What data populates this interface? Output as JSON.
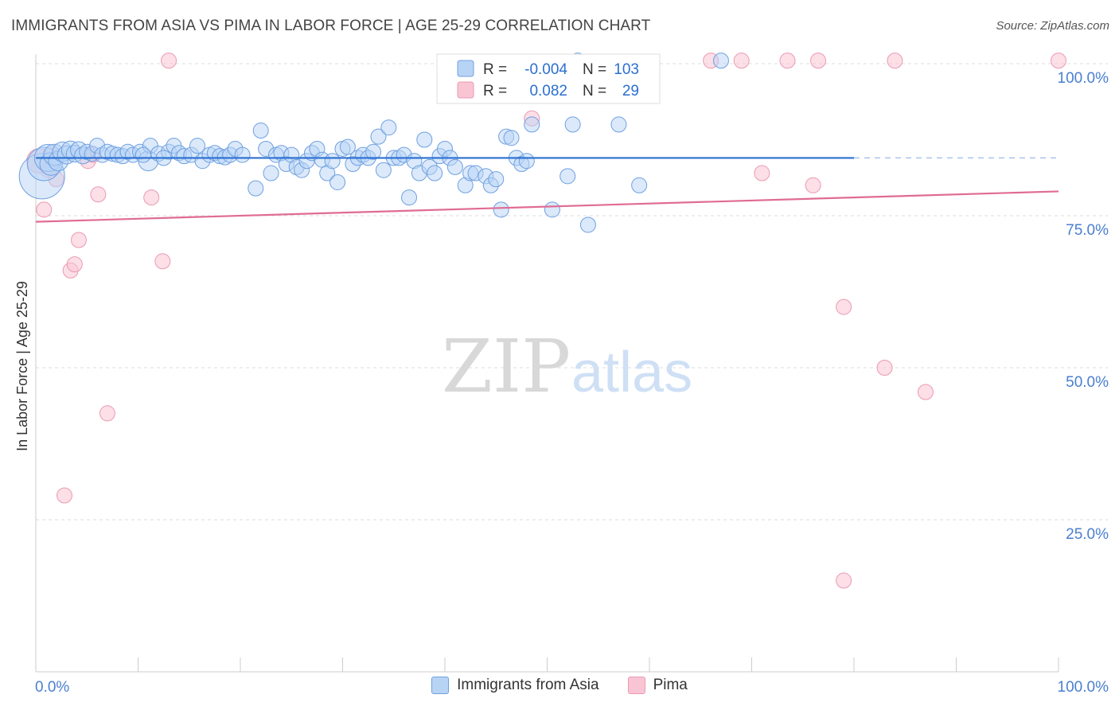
{
  "header": {
    "title": "IMMIGRANTS FROM ASIA VS PIMA IN LABOR FORCE | AGE 25-29 CORRELATION CHART",
    "source": "Source: ZipAtlas.com"
  },
  "watermark": {
    "part1": "ZIP",
    "part2": "atlas"
  },
  "legend": {
    "rows": [
      {
        "series": "Immigrants from Asia",
        "r_label": "R =",
        "r_value": "-0.004",
        "n_label": "N =",
        "n_value": "103"
      },
      {
        "series": "Pima",
        "r_label": "R =",
        "r_value": "0.082",
        "n_label": "N =",
        "n_value": "29"
      }
    ]
  },
  "colors": {
    "asia_fill": "#b8d4f5",
    "asia_stroke": "#6fa0e0",
    "asia_line": "#2a6fd1",
    "pima_fill": "#f9c5d4",
    "pima_stroke": "#ea9ab2",
    "pima_line": "#e06b95",
    "tick_label": "#4a7fd0",
    "grid": "#dddddd"
  },
  "chart_data": {
    "type": "scatter",
    "title": "IMMIGRANTS FROM ASIA VS PIMA IN LABOR FORCE | AGE 25-29 CORRELATION CHART",
    "xlabel": "",
    "ylabel": "In Labor Force | Age 25-29",
    "xlim": [
      0,
      100
    ],
    "ylim": [
      0,
      100
    ],
    "x_tick_labels": [
      "0.0%",
      "100.0%"
    ],
    "y_ticks": [
      25,
      50,
      75,
      100
    ],
    "y_tick_labels": [
      "25.0%",
      "50.0%",
      "75.0%",
      "100.0%"
    ],
    "series": [
      {
        "name": "Immigrants from Asia",
        "r": -0.004,
        "n": 103,
        "trend": {
          "x": [
            0,
            80
          ],
          "y": [
            84.5,
            84.5
          ],
          "dashed_extension_to": 100
        },
        "points": [
          [
            0.6,
            81.5,
            3
          ],
          [
            0.8,
            83.5,
            2.2
          ],
          [
            1.2,
            84.5,
            1.8
          ],
          [
            1.5,
            83.5,
            1.5
          ],
          [
            1.8,
            85.0,
            1.4
          ],
          [
            2.2,
            84.0,
            1.3
          ],
          [
            2.6,
            85.5,
            1.3
          ],
          [
            3.0,
            85.0,
            1.2
          ],
          [
            3.4,
            85.8,
            1.2
          ],
          [
            3.8,
            85.2,
            1.1
          ],
          [
            4.2,
            85.8,
            1.1
          ],
          [
            4.6,
            84.9,
            1.1
          ],
          [
            5.0,
            85.5,
            1.0
          ],
          [
            5.5,
            85.2,
            1.0
          ],
          [
            6.0,
            86.5,
            1.0
          ],
          [
            6.5,
            85.0,
            1.0
          ],
          [
            7.0,
            85.5,
            1.0
          ],
          [
            7.5,
            85.2,
            1.0
          ],
          [
            8.0,
            85.0,
            1.0
          ],
          [
            8.5,
            84.8,
            1.0
          ],
          [
            9.0,
            85.5,
            1.0
          ],
          [
            9.5,
            85.0,
            1.0
          ],
          [
            10.2,
            85.5,
            1.0
          ],
          [
            11.0,
            84.0,
            1.3
          ],
          [
            11.2,
            86.5,
            1.0
          ],
          [
            12.0,
            85.2,
            1.0
          ],
          [
            13.0,
            85.5,
            1.0
          ],
          [
            13.5,
            86.5,
            1.0
          ],
          [
            14.0,
            85.3,
            1.0
          ],
          [
            14.5,
            84.8,
            1.0
          ],
          [
            15.2,
            85.0,
            1.0
          ],
          [
            15.8,
            86.5,
            1.0
          ],
          [
            16.3,
            84.0,
            1.0
          ],
          [
            17.0,
            85.0,
            1.0
          ],
          [
            17.5,
            85.3,
            1.0
          ],
          [
            18.0,
            84.8,
            1.0
          ],
          [
            18.5,
            84.6,
            1.0
          ],
          [
            19.0,
            85.0,
            1.0
          ],
          [
            19.5,
            86.0,
            1.0
          ],
          [
            20.2,
            85.0,
            1.0
          ],
          [
            21.5,
            79.5,
            1.0
          ],
          [
            22.0,
            89.0,
            1.0
          ],
          [
            22.5,
            86.0,
            1.0
          ],
          [
            23.0,
            82.0,
            1.0
          ],
          [
            23.5,
            85.0,
            1.0
          ],
          [
            24.0,
            85.3,
            1.0
          ],
          [
            24.5,
            83.5,
            1.0
          ],
          [
            25.0,
            85.0,
            1.0
          ],
          [
            25.5,
            83.0,
            1.0
          ],
          [
            26.0,
            82.5,
            1.0
          ],
          [
            26.5,
            84.0,
            1.0
          ],
          [
            27.0,
            85.3,
            1.0
          ],
          [
            27.5,
            86.0,
            1.0
          ],
          [
            28.0,
            84.2,
            1.0
          ],
          [
            28.5,
            82.0,
            1.0
          ],
          [
            29.0,
            84.0,
            1.0
          ],
          [
            29.5,
            80.5,
            1.0
          ],
          [
            30.0,
            86.0,
            1.0
          ],
          [
            30.5,
            86.3,
            1.0
          ],
          [
            31.0,
            83.5,
            1.0
          ],
          [
            31.5,
            84.5,
            1.0
          ],
          [
            32.0,
            85.0,
            1.0
          ],
          [
            32.5,
            84.5,
            1.0
          ],
          [
            33.0,
            85.5,
            1.0
          ],
          [
            33.5,
            88.0,
            1.0
          ],
          [
            34.0,
            82.5,
            1.0
          ],
          [
            34.5,
            89.5,
            1.0
          ],
          [
            35.0,
            84.5,
            1.0
          ],
          [
            35.5,
            84.5,
            1.0
          ],
          [
            36.0,
            85.0,
            1.0
          ],
          [
            36.5,
            78.0,
            1.0
          ],
          [
            37.0,
            84.0,
            1.0
          ],
          [
            37.5,
            82.0,
            1.0
          ],
          [
            38.0,
            87.5,
            1.0
          ],
          [
            38.5,
            83.0,
            1.0
          ],
          [
            39.0,
            82.0,
            1.0
          ],
          [
            39.5,
            84.8,
            1.0
          ],
          [
            40.0,
            86.0,
            1.0
          ],
          [
            40.5,
            84.5,
            1.0
          ],
          [
            41.0,
            83.0,
            1.0
          ],
          [
            42.0,
            80.0,
            1.0
          ],
          [
            42.5,
            82.0,
            1.0
          ],
          [
            43.0,
            82.0,
            1.0
          ],
          [
            44.0,
            81.5,
            1.0
          ],
          [
            44.5,
            80.0,
            1.0
          ],
          [
            45.0,
            81.0,
            1.0
          ],
          [
            45.5,
            76.0,
            1.0
          ],
          [
            46.0,
            88.0,
            1.0
          ],
          [
            46.5,
            87.8,
            1.0
          ],
          [
            47.0,
            84.5,
            1.0
          ],
          [
            47.5,
            83.5,
            1.0
          ],
          [
            48.0,
            84.0,
            1.0
          ],
          [
            48.5,
            90.0,
            1.0
          ],
          [
            50.5,
            76.0,
            1.0
          ],
          [
            52.0,
            81.5,
            1.0
          ],
          [
            52.5,
            90.0,
            1.0
          ],
          [
            53.0,
            100.5,
            1.0
          ],
          [
            54.0,
            73.5,
            1.0
          ],
          [
            57.0,
            90.0,
            1.0
          ],
          [
            59.0,
            80.0,
            1.0
          ],
          [
            67.0,
            100.5,
            1.0
          ],
          [
            10.5,
            85.0,
            1.0
          ],
          [
            12.5,
            84.5,
            1.0
          ]
        ]
      },
      {
        "name": "Pima",
        "r": 0.082,
        "n": 29,
        "trend": {
          "x": [
            0,
            100
          ],
          "y": [
            74.0,
            79.0
          ]
        },
        "points": [
          [
            0.3,
            84.0,
            1.6
          ],
          [
            0.8,
            76.0,
            1.0
          ],
          [
            1.2,
            82.5,
            1.0
          ],
          [
            1.6,
            85.0,
            1.0
          ],
          [
            2.0,
            81.0,
            1.0
          ],
          [
            2.8,
            29.0,
            1.0
          ],
          [
            3.4,
            66.0,
            1.0
          ],
          [
            3.8,
            67.0,
            1.0
          ],
          [
            4.2,
            71.0,
            1.0
          ],
          [
            5.1,
            84.0,
            1.0
          ],
          [
            5.6,
            85.0,
            1.0
          ],
          [
            6.1,
            78.5,
            1.0
          ],
          [
            7.0,
            42.5,
            1.0
          ],
          [
            11.3,
            78.0,
            1.0
          ],
          [
            12.4,
            67.5,
            1.0
          ],
          [
            13.0,
            100.5,
            1.0
          ],
          [
            48.5,
            91.0,
            1.0
          ],
          [
            66.0,
            100.5,
            1.0
          ],
          [
            69.0,
            100.5,
            1.0
          ],
          [
            71.0,
            82.0,
            1.0
          ],
          [
            73.5,
            100.5,
            1.0
          ],
          [
            76.0,
            80.0,
            1.0
          ],
          [
            76.5,
            100.5,
            1.0
          ],
          [
            79.0,
            60.0,
            1.0
          ],
          [
            79.0,
            15.0,
            1.0
          ],
          [
            83.0,
            50.0,
            1.0
          ],
          [
            84.0,
            100.5,
            1.0
          ],
          [
            87.0,
            46.0,
            1.0
          ],
          [
            100.0,
            100.5,
            1.0
          ]
        ]
      }
    ]
  }
}
